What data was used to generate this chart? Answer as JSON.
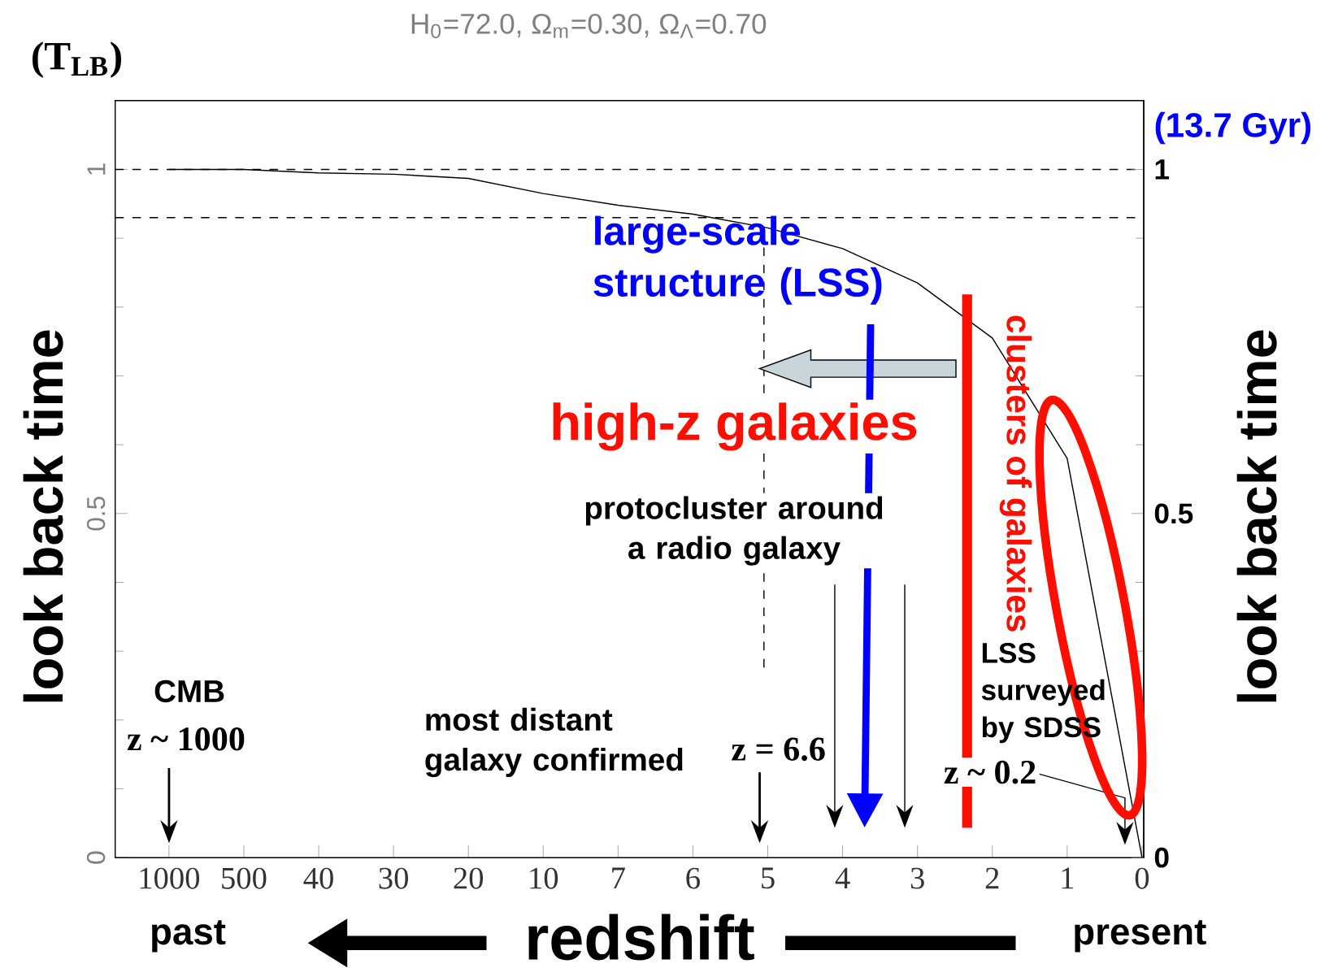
{
  "chart_data": {
    "type": "line",
    "title": "H$_{0}$=72.0,   Ω$_{m}$=0.30,   Ω$_{Λ}$=0.70",
    "xlabel": "redshift",
    "ylabel": "look back time",
    "y2label": "look back time",
    "categories": [
      "1000",
      "500",
      "40",
      "30",
      "20",
      "10",
      "7",
      "6",
      "5",
      "4",
      "3",
      "2",
      "1",
      "0"
    ],
    "values": [
      1,
      1,
      0.995,
      0.993,
      0.987,
      0.965,
      0.948,
      0.935,
      0.915,
      0.885,
      0.835,
      0.755,
      0.58,
      0
    ],
    "color": "#000000",
    "line_style": "solid",
    "marker": "none",
    "ylim": [
      0,
      1.1
    ],
    "yticks": [
      0,
      0.5,
      1
    ],
    "y2lim": [
      0,
      1.1
    ],
    "y2ticks": [
      0,
      0.5,
      1
    ],
    "ref_lines": [
      {
        "axis": "y",
        "value": 1,
        "line_style": "dashed"
      },
      {
        "axis": "y",
        "value": 0.93,
        "line_style": "dashed"
      }
    ],
    "annotations": [
      "(T$_{LB}$)",
      "(13.7 Gyr)",
      "CMB",
      "z ~ 1000",
      "most distant galaxy confirmed",
      "z = 6.6",
      "protocluster around a radio galaxy",
      "high-z galaxies",
      "large-scale structure  (LSS)",
      "clusters of galaxies",
      "LSS surveyed by SDSS",
      "z ~ 0.2",
      "past",
      "present"
    ]
  }
}
